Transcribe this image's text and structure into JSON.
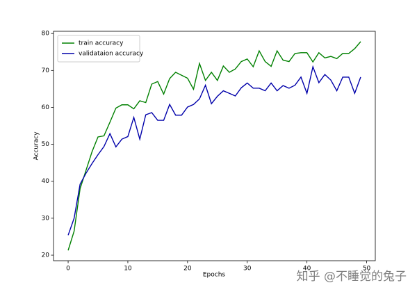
{
  "chart_data": {
    "type": "line",
    "x": [
      0,
      1,
      2,
      3,
      4,
      5,
      6,
      7,
      8,
      9,
      10,
      11,
      12,
      13,
      14,
      15,
      16,
      17,
      18,
      19,
      20,
      21,
      22,
      23,
      24,
      25,
      26,
      27,
      28,
      29,
      30,
      31,
      32,
      33,
      34,
      35,
      36,
      37,
      38,
      39,
      40,
      41,
      42,
      43,
      44,
      45,
      46,
      47,
      48,
      49
    ],
    "series": [
      {
        "name": "train accuracy",
        "color": "#008000",
        "values": [
          21.3,
          26.5,
          38,
          43,
          48,
          52,
          52.3,
          56,
          59.8,
          60.7,
          60.7,
          59.6,
          61.8,
          61.3,
          66.3,
          67,
          63.6,
          67.8,
          69.5,
          68.7,
          67.9,
          64.9,
          71.9,
          67.3,
          69.5,
          67.3,
          71.2,
          69.5,
          70.4,
          72.4,
          73.1,
          71,
          75.3,
          72.4,
          71.1,
          75.3,
          72.8,
          72.4,
          74.6,
          74.8,
          74.8,
          72.3,
          74.8,
          73.4,
          73.8,
          73.2,
          74.6,
          74.6,
          75.9,
          77.8
        ]
      },
      {
        "name": "validataion accuracy",
        "color": "#0000aa",
        "values": [
          25.4,
          30,
          39.2,
          42.2,
          44.8,
          47.2,
          49.4,
          52.9,
          49.3,
          51.4,
          52.1,
          57.3,
          51.4,
          58,
          58.6,
          56.5,
          56.5,
          60.8,
          57.9,
          57.9,
          60.1,
          60.8,
          62.3,
          66,
          61,
          63,
          64.5,
          63.8,
          63.1,
          65.3,
          66.6,
          65.2,
          65.2,
          64.5,
          66.6,
          64.5,
          65.9,
          65.2,
          66,
          68.2,
          63.8,
          71,
          66.7,
          68.9,
          67.4,
          64.5,
          68.2,
          68.2,
          63.8,
          68.2
        ]
      }
    ],
    "x_label": "Epochs",
    "y_label": "Accuracy",
    "xlim": [
      -2.45,
      51.45
    ],
    "ylim": [
      18.5,
      80.6
    ],
    "xticks": [
      0,
      10,
      20,
      30,
      40,
      50
    ],
    "yticks": [
      20,
      30,
      40,
      50,
      60,
      70,
      80
    ],
    "legend": "upper left",
    "grid": false
  },
  "watermark": "知乎 @不睡觉的兔子"
}
